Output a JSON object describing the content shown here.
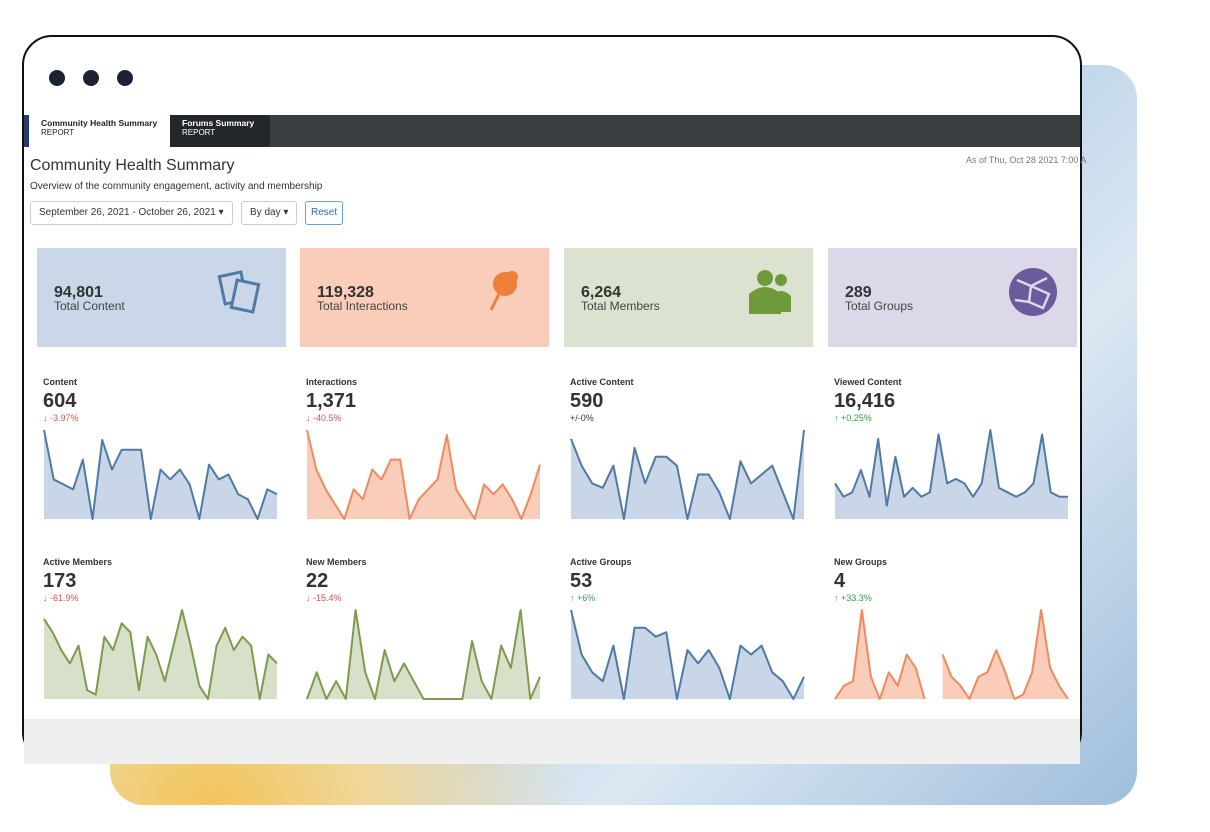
{
  "window": {
    "tabs": [
      {
        "title": "Community Health Summary",
        "subtitle": "REPORT"
      },
      {
        "title": "Forums Summary",
        "subtitle": "REPORT"
      }
    ]
  },
  "header": {
    "title": "Community Health Summary",
    "subtitle": "Overview of the community engagement, activity and membership",
    "timestamp": "As of Thu, Oct 28 2021 7:00 A",
    "date_range": "September 26, 2021 - October 26, 2021",
    "interval": "By day",
    "reset": "Reset"
  },
  "summary_cards": [
    {
      "value": "94,801",
      "label": "Total Content",
      "color": "#c9d7e8"
    },
    {
      "value": "119,328",
      "label": "Total Interactions",
      "color": "#f9cdb9"
    },
    {
      "value": "6,264",
      "label": "Total Members",
      "color": "#dbe3d0"
    },
    {
      "value": "289",
      "label": "Total Groups",
      "color": "#dcd8e9"
    }
  ],
  "metrics": [
    {
      "label": "Content",
      "value": "604",
      "change": "↓ -3.97%",
      "change_color": "#d9534f",
      "line_color": "#4f7aa6",
      "fill_color": "#c8d6e8",
      "values": [
        9,
        4,
        3.5,
        3,
        6,
        0,
        8,
        5,
        7,
        7,
        7,
        0,
        5,
        4,
        5,
        3.5,
        0,
        5.5,
        4,
        4.5,
        2.5,
        2,
        0,
        3,
        2.5
      ]
    },
    {
      "label": "Interactions",
      "value": "1,371",
      "change": "↓ -40.5%",
      "change_color": "#d9534f",
      "line_color": "#f08a5d",
      "fill_color": "#f9cdb9",
      "values": [
        9,
        5,
        3,
        1.5,
        0,
        3,
        2,
        5,
        4,
        6,
        6,
        0,
        2,
        3,
        4,
        8.5,
        3,
        1.5,
        0,
        3.5,
        2.5,
        3.5,
        2,
        0,
        2.5,
        5.5
      ]
    },
    {
      "label": "Active Content",
      "value": "590",
      "change": "+/-0%",
      "change_color": "#333333",
      "line_color": "#4f7aa6",
      "fill_color": "#c8d6e8",
      "values": [
        9,
        6,
        4,
        3.5,
        6,
        0,
        8,
        4,
        7,
        7,
        6,
        0,
        5,
        5,
        3,
        0,
        6.5,
        4,
        5,
        6,
        3,
        0,
        10
      ]
    },
    {
      "label": "Viewed Content",
      "value": "16,416",
      "change": "↑ +0.25%",
      "change_color": "#3c9a4a",
      "line_color": "#4f7aa6",
      "fill_color": "#c8d6e8",
      "values": [
        4,
        2.5,
        3,
        5.5,
        2.5,
        9,
        1.5,
        7,
        2.5,
        3.5,
        2.5,
        3,
        9.5,
        4,
        4.5,
        4,
        2.5,
        4,
        10,
        3.5,
        3,
        2.5,
        3,
        4,
        9.5,
        3,
        2.5,
        2.5
      ]
    },
    {
      "label": "Active Members",
      "value": "173",
      "change": "↓ -61.9%",
      "change_color": "#d9534f",
      "line_color": "#7d9a4f",
      "fill_color": "#d7e0c8",
      "values": [
        9,
        7.5,
        5.5,
        4,
        6,
        1,
        0.5,
        7,
        5.5,
        8.5,
        7.5,
        1,
        7,
        5,
        2,
        6,
        10,
        6,
        1.5,
        0,
        6,
        8,
        5.5,
        7,
        6,
        0,
        5,
        4
      ]
    },
    {
      "label": "New Members",
      "value": "22",
      "change": "↓ -15.4%",
      "change_color": "#d9534f",
      "line_color": "#7d9a4f",
      "fill_color": "#d7e0c8",
      "values": [
        0,
        3,
        0,
        2,
        0,
        10,
        3,
        0,
        5.5,
        2,
        4,
        2,
        0,
        0,
        0,
        0,
        0,
        6.5,
        2,
        0,
        6,
        3.5,
        10,
        0,
        2.5
      ]
    },
    {
      "label": "Active Groups",
      "value": "53",
      "change": "↑ +6%",
      "change_color": "#3c9a4a",
      "line_color": "#4f7aa6",
      "fill_color": "#c8d6e8",
      "values": [
        10,
        5,
        3,
        2,
        6,
        0,
        8,
        8,
        7,
        7.5,
        0,
        5.5,
        4,
        5.5,
        3.5,
        0,
        6,
        5,
        6,
        3,
        2,
        0,
        2.5
      ]
    },
    {
      "label": "New Groups",
      "value": "4",
      "change": "↑ +33.3%",
      "change_color": "#3c9a4a",
      "line_color": "#f08a5d",
      "fill_color": "#f9cdb9",
      "values": [
        0,
        1.5,
        2,
        10,
        2.5,
        0,
        3,
        1.5,
        5,
        3.5,
        0,
        null,
        5,
        2.5,
        1.5,
        0,
        2.5,
        3,
        5.5,
        3,
        0,
        0.5,
        3,
        10,
        3.5,
        1.5,
        0
      ]
    }
  ]
}
